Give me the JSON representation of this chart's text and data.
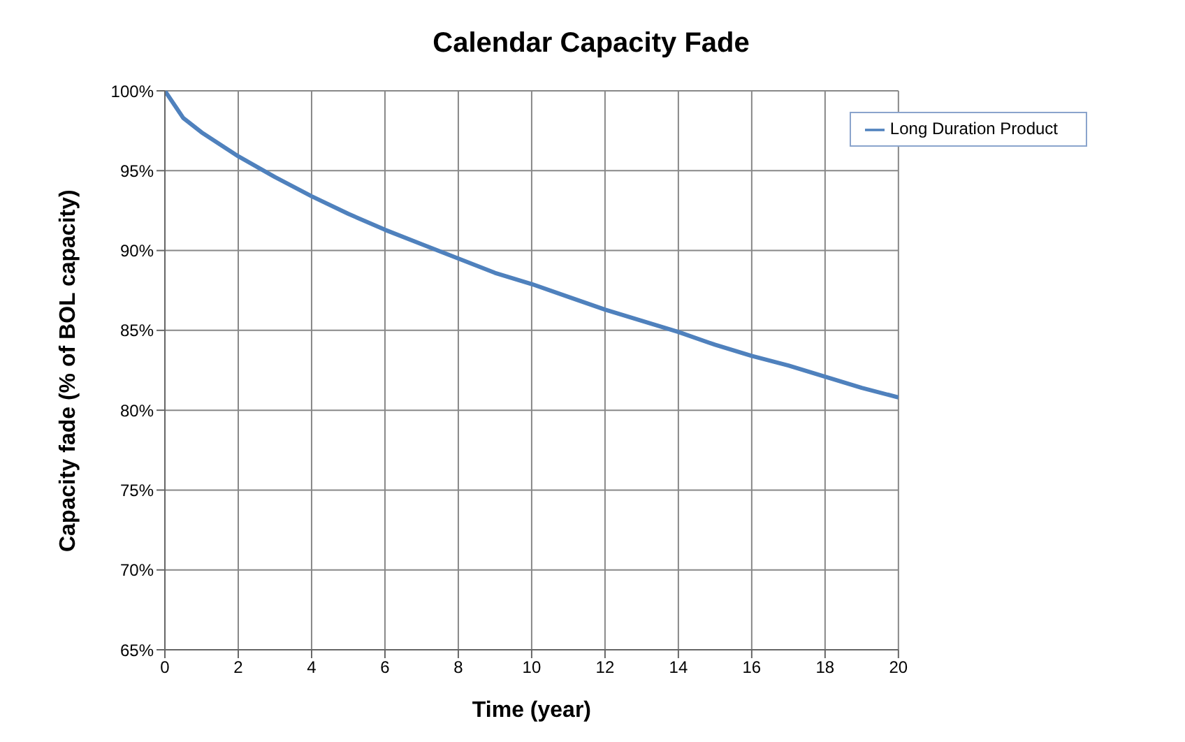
{
  "chart_data": {
    "type": "line",
    "title": "Calendar Capacity Fade",
    "xlabel": "Time (year)",
    "ylabel": "Capacity fade (% of BOL capacity)",
    "x": [
      0,
      0.5,
      1,
      2,
      3,
      4,
      5,
      6,
      7,
      8,
      9,
      10,
      11,
      12,
      13,
      14,
      15,
      16,
      17,
      18,
      19,
      20
    ],
    "series": [
      {
        "name": "Long Duration Product",
        "color": "#4f81bd",
        "values": [
          100,
          98.3,
          97.4,
          95.9,
          94.6,
          93.4,
          92.3,
          91.3,
          90.4,
          89.5,
          88.6,
          87.9,
          87.1,
          86.3,
          85.6,
          84.9,
          84.1,
          83.4,
          82.8,
          82.1,
          81.4,
          80.8
        ]
      }
    ],
    "xlim": [
      0,
      20
    ],
    "xticks": [
      0,
      2,
      4,
      6,
      8,
      10,
      12,
      14,
      16,
      18,
      20
    ],
    "ylim": [
      65,
      100
    ],
    "yticks": [
      {
        "value": 65,
        "label": "65%"
      },
      {
        "value": 70,
        "label": "70%"
      },
      {
        "value": 75,
        "label": "75%"
      },
      {
        "value": 80,
        "label": "80%"
      },
      {
        "value": 85,
        "label": "85%"
      },
      {
        "value": 90,
        "label": "90%"
      },
      {
        "value": 95,
        "label": "95%"
      },
      {
        "value": 100,
        "label": "100%"
      }
    ],
    "grid": true,
    "legend": "top right",
    "marker": "none",
    "line_style": "solid"
  }
}
